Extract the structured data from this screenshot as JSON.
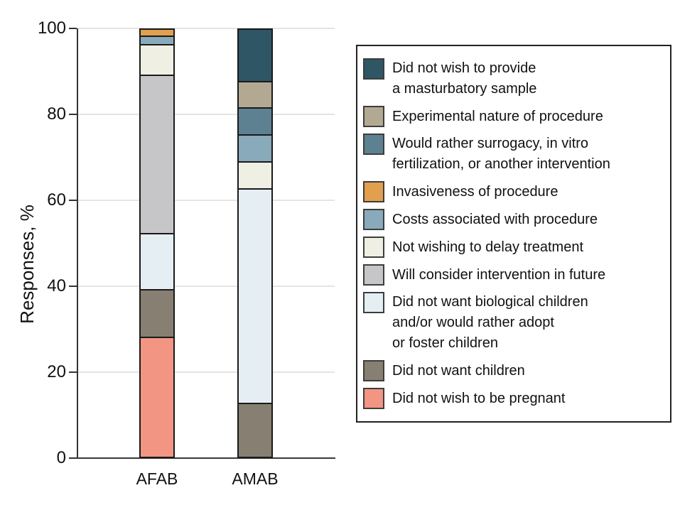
{
  "figure": {
    "background": "#ffffff"
  },
  "chart_data": {
    "type": "bar",
    "variant": "stacked-vertical",
    "title": "",
    "xlabel": "",
    "ylabel": "Responses, %",
    "ylim": [
      0,
      100
    ],
    "yticks": [
      0,
      20,
      40,
      60,
      80,
      100
    ],
    "grid": "horizontal gridlines at y ticks, light gray, behind bars",
    "legend_position": "right, boxed",
    "categories": [
      "AFAB",
      "AMAB"
    ],
    "stack_order": "bottom to top",
    "series": [
      {
        "name": "Did not wish to be pregnant",
        "color": "#F29583",
        "values": [
          28,
          0
        ]
      },
      {
        "name": "Did not want children",
        "color": "#877F71",
        "values": [
          11,
          12.5
        ]
      },
      {
        "name": "Did not want biological children and/or would rather adopt or foster children",
        "color": "#E5EEF3",
        "values": [
          13,
          50
        ]
      },
      {
        "name": "Will consider intervention in future",
        "color": "#C6C6C9",
        "values": [
          37,
          0
        ]
      },
      {
        "name": "Not wishing to delay treatment",
        "color": "#F0EFE4",
        "values": [
          7,
          6.25
        ]
      },
      {
        "name": "Costs associated with procedure",
        "color": "#88AABA",
        "values": [
          2,
          6.25
        ]
      },
      {
        "name": "Would rather surrogacy, in vitro fertilization, or another intervention",
        "color": "#5D8191",
        "values": [
          0,
          6.25
        ]
      },
      {
        "name": "Invasiveness of procedure",
        "color": "#E2A04F",
        "values": [
          2,
          0
        ]
      },
      {
        "name": "Experimental nature of procedure",
        "color": "#B3A993",
        "values": [
          0,
          6.25
        ]
      },
      {
        "name": "Did not wish to provide a masturbatory sample",
        "color": "#2F5665",
        "values": [
          0,
          12.5
        ]
      }
    ],
    "legend": [
      {
        "color": "#2F5665",
        "lines": [
          "Did not wish to provide",
          "a masturbatory sample"
        ]
      },
      {
        "color": "#B3A993",
        "lines": [
          "Experimental nature of procedure"
        ]
      },
      {
        "color": "#5D8191",
        "lines": [
          "Would rather surrogacy, in vitro",
          "fertilization, or another intervention"
        ]
      },
      {
        "color": "#E2A04F",
        "lines": [
          "Invasiveness of procedure"
        ]
      },
      {
        "color": "#88AABA",
        "lines": [
          "Costs associated with procedure"
        ]
      },
      {
        "color": "#F0EFE4",
        "lines": [
          "Not wishing to delay treatment"
        ]
      },
      {
        "color": "#C6C6C9",
        "lines": [
          "Will consider intervention in future"
        ]
      },
      {
        "color": "#E5EEF3",
        "lines": [
          "Did not want biological children",
          "and/or would rather adopt",
          "or foster children"
        ]
      },
      {
        "color": "#877F71",
        "lines": [
          "Did not want children"
        ]
      },
      {
        "color": "#F29583",
        "lines": [
          "Did not wish to be pregnant"
        ]
      }
    ]
  }
}
